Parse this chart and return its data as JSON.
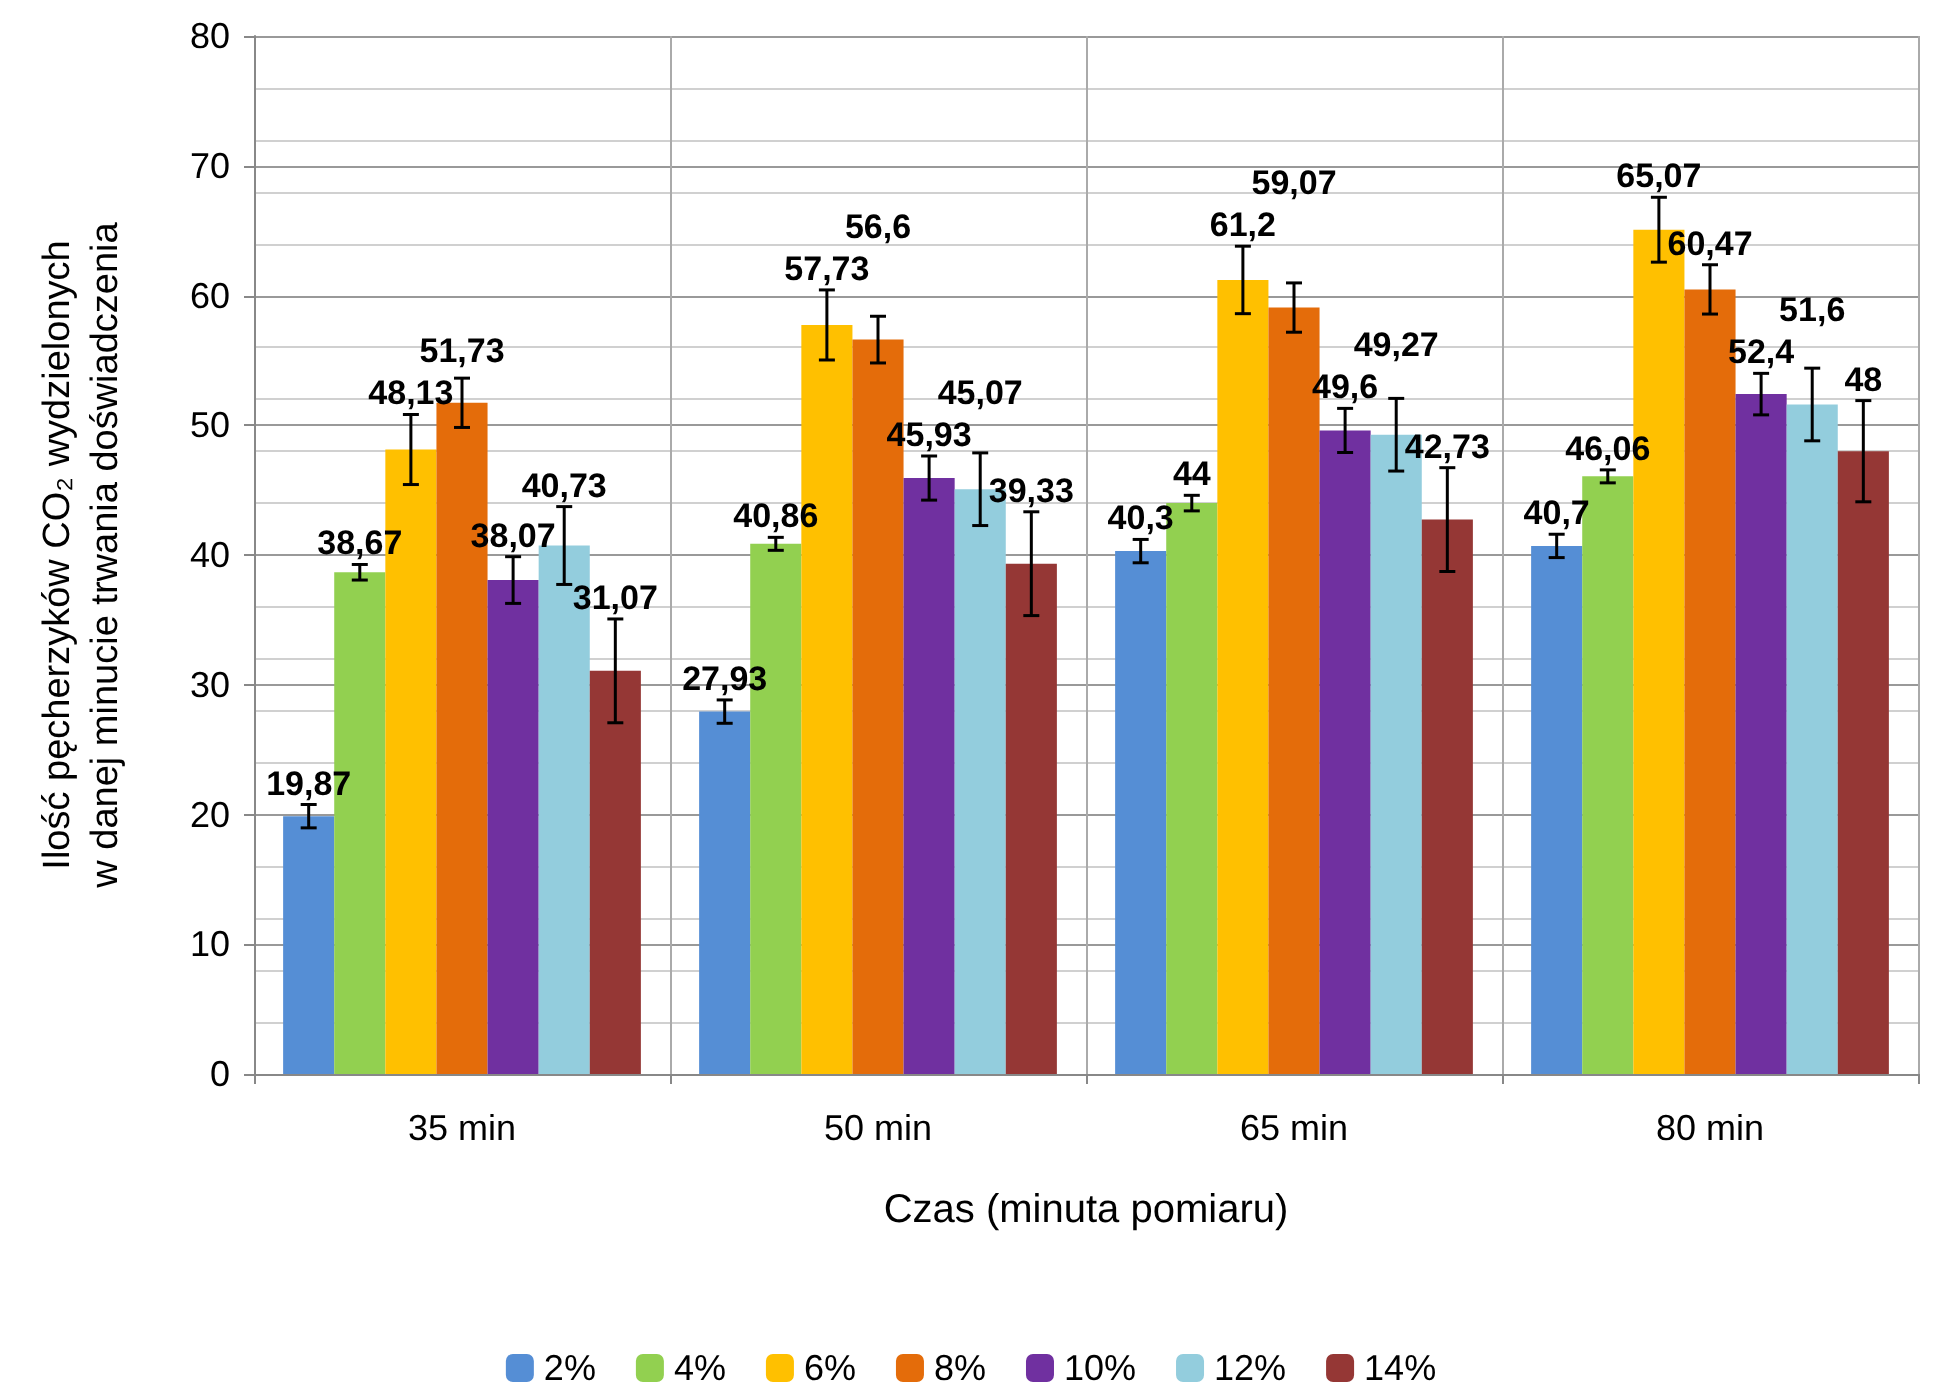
{
  "chart_data": {
    "type": "bar",
    "xlabel": "Czas (minuta pomiaru)",
    "ylabel": "Ilość pęcherzyków CO₂ wydzielonych\nw danej minucie trwania doświadczenia",
    "categories": [
      "35 min",
      "50 min",
      "65 min",
      "80 min"
    ],
    "series": [
      {
        "name": "2%",
        "color": "#558ed5",
        "values": [
          19.87,
          27.93,
          40.3,
          40.7
        ],
        "errors": [
          0.9,
          0.9,
          0.9,
          0.9
        ],
        "value_labels": [
          "19,87",
          "27,93",
          "40,3",
          "40,7"
        ]
      },
      {
        "name": "4%",
        "color": "#92d050",
        "values": [
          38.67,
          40.86,
          44,
          46.06
        ],
        "errors": [
          0.6,
          0.5,
          0.6,
          0.5
        ],
        "value_labels": [
          "38,67",
          "40,86",
          "44",
          "46,06"
        ]
      },
      {
        "name": "6%",
        "color": "#ffc000",
        "values": [
          48.13,
          57.73,
          61.2,
          65.07
        ],
        "errors": [
          2.7,
          2.7,
          2.6,
          2.5
        ],
        "value_labels": [
          "48,13",
          "57,73",
          "61,2",
          "65,07"
        ]
      },
      {
        "name": "8%",
        "color": "#e46c0a",
        "values": [
          51.73,
          56.6,
          59.07,
          60.47
        ],
        "errors": [
          1.9,
          1.8,
          1.9,
          1.9
        ],
        "value_labels": [
          "51,73",
          "56,6",
          "59,07",
          "60,47"
        ]
      },
      {
        "name": "10%",
        "color": "#7030a0",
        "values": [
          38.07,
          45.93,
          49.6,
          52.4
        ],
        "errors": [
          1.8,
          1.7,
          1.7,
          1.6
        ],
        "value_labels": [
          "38,07",
          "45,93",
          "49,6",
          "52,4"
        ]
      },
      {
        "name": "12%",
        "color": "#93cddd",
        "values": [
          40.73,
          45.07,
          49.27,
          51.6
        ],
        "errors": [
          3,
          2.8,
          2.8,
          2.8
        ],
        "value_labels": [
          "40,73",
          "45,07",
          "49,27",
          "51,6"
        ]
      },
      {
        "name": "14%",
        "color": "#953735",
        "values": [
          31.07,
          39.33,
          42.73,
          48
        ],
        "errors": [
          4,
          4,
          4,
          3.9
        ],
        "value_labels": [
          "31,07",
          "39,33",
          "42,73",
          "48"
        ]
      }
    ],
    "ylim": [
      0,
      80
    ],
    "yticks": [
      0,
      10,
      20,
      30,
      40,
      50,
      60,
      70,
      80
    ],
    "grid": true,
    "legend": "bottom"
  }
}
